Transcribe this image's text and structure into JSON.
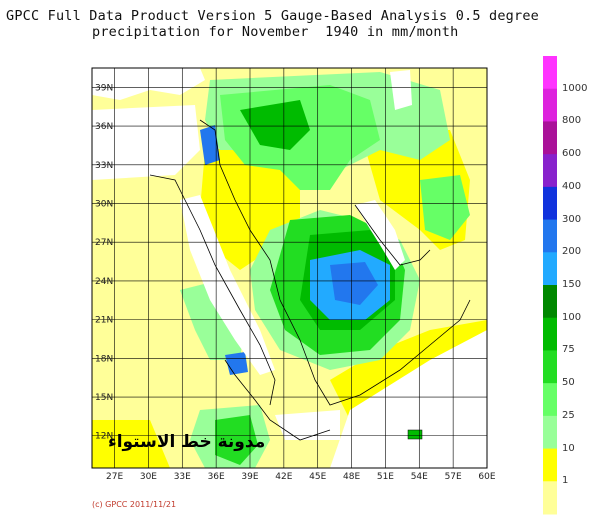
{
  "title": {
    "line1": "GPCC Full Data Product Version 5 Gauge-Based Analysis 0.5 degree",
    "line2": "precipitation for November  1940 in mm/month"
  },
  "map": {
    "lat_ticks": [
      "39N",
      "36N",
      "33N",
      "30N",
      "27N",
      "24N",
      "21N",
      "18N",
      "15N",
      "12N"
    ],
    "lon_ticks": [
      "27E",
      "30E",
      "33E",
      "36E",
      "39E",
      "42E",
      "45E",
      "48E",
      "51E",
      "54E",
      "57E",
      "60E"
    ]
  },
  "colorbar": {
    "labels": [
      "1000",
      "800",
      "600",
      "400",
      "300",
      "200",
      "150",
      "100",
      "75",
      "50",
      "25",
      "10",
      "1"
    ],
    "colors": [
      "#ff33ff",
      "#dd22dd",
      "#aa1199",
      "#8822cc",
      "#1133dd",
      "#2277ee",
      "#22aaff",
      "#008800",
      "#00bb00",
      "#22dd22",
      "#66ff66",
      "#99ff99",
      "#ffff00",
      "#ffff99"
    ]
  },
  "watermark": "مدونة خط الاستواء",
  "copyright": "(c) GPCC 2011/11/21"
}
